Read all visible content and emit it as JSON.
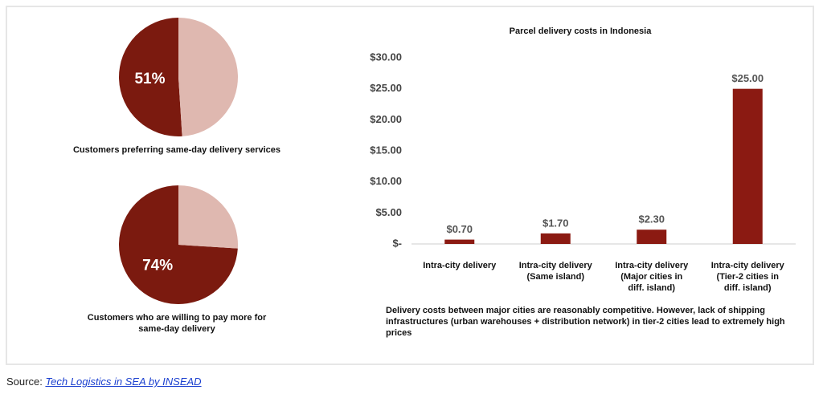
{
  "chart_data": [
    {
      "type": "pie",
      "caption": "Customers preferring same-day delivery services",
      "categories": [
        null,
        null
      ],
      "values": [
        51,
        49
      ],
      "value_labels": [
        "51%",
        null
      ],
      "colors": [
        "#7b1a0f",
        "#dfb8b0"
      ]
    },
    {
      "type": "pie",
      "caption": "Customers who are willing to pay more for\nsame-day delivery",
      "categories": [
        null,
        null
      ],
      "values": [
        74,
        26
      ],
      "value_labels": [
        "74%",
        null
      ],
      "colors": [
        "#7b1a0f",
        "#dfb8b0"
      ]
    },
    {
      "type": "bar",
      "title": "Parcel delivery costs in Indonesia",
      "categories": [
        "Intra-city delivery",
        "Intra-city delivery\n(Same island)",
        "Intra-city delivery\n(Major cities in\ndiff. island)",
        "Intra-city delivery\n(Tier-2 cities in\ndiff. island)"
      ],
      "values": [
        0.7,
        1.7,
        2.3,
        25
      ],
      "value_labels": [
        "$0.70",
        "$1.70",
        "$2.30",
        "$25.00"
      ],
      "color": "#8b1a12",
      "ylim": [
        0,
        30
      ],
      "yticks": [
        {
          "value": 0,
          "label": "$-"
        },
        {
          "value": 5,
          "label": "$5.00"
        },
        {
          "value": 10,
          "label": "$10.00"
        },
        {
          "value": 15,
          "label": "$15.00"
        },
        {
          "value": 20,
          "label": "$20.00"
        },
        {
          "value": 25,
          "label": "$25.00"
        },
        {
          "value": 30,
          "label": "$30.00"
        }
      ],
      "note": "Delivery costs between major cities are reasonably competitive. However, lack of shipping\ninfrastructures (urban warehouses + distribution network) in tier-2 cities lead to extremely high prices"
    }
  ],
  "source": {
    "label": "Source:",
    "link": "Tech Logistics in SEA by INSEAD"
  }
}
